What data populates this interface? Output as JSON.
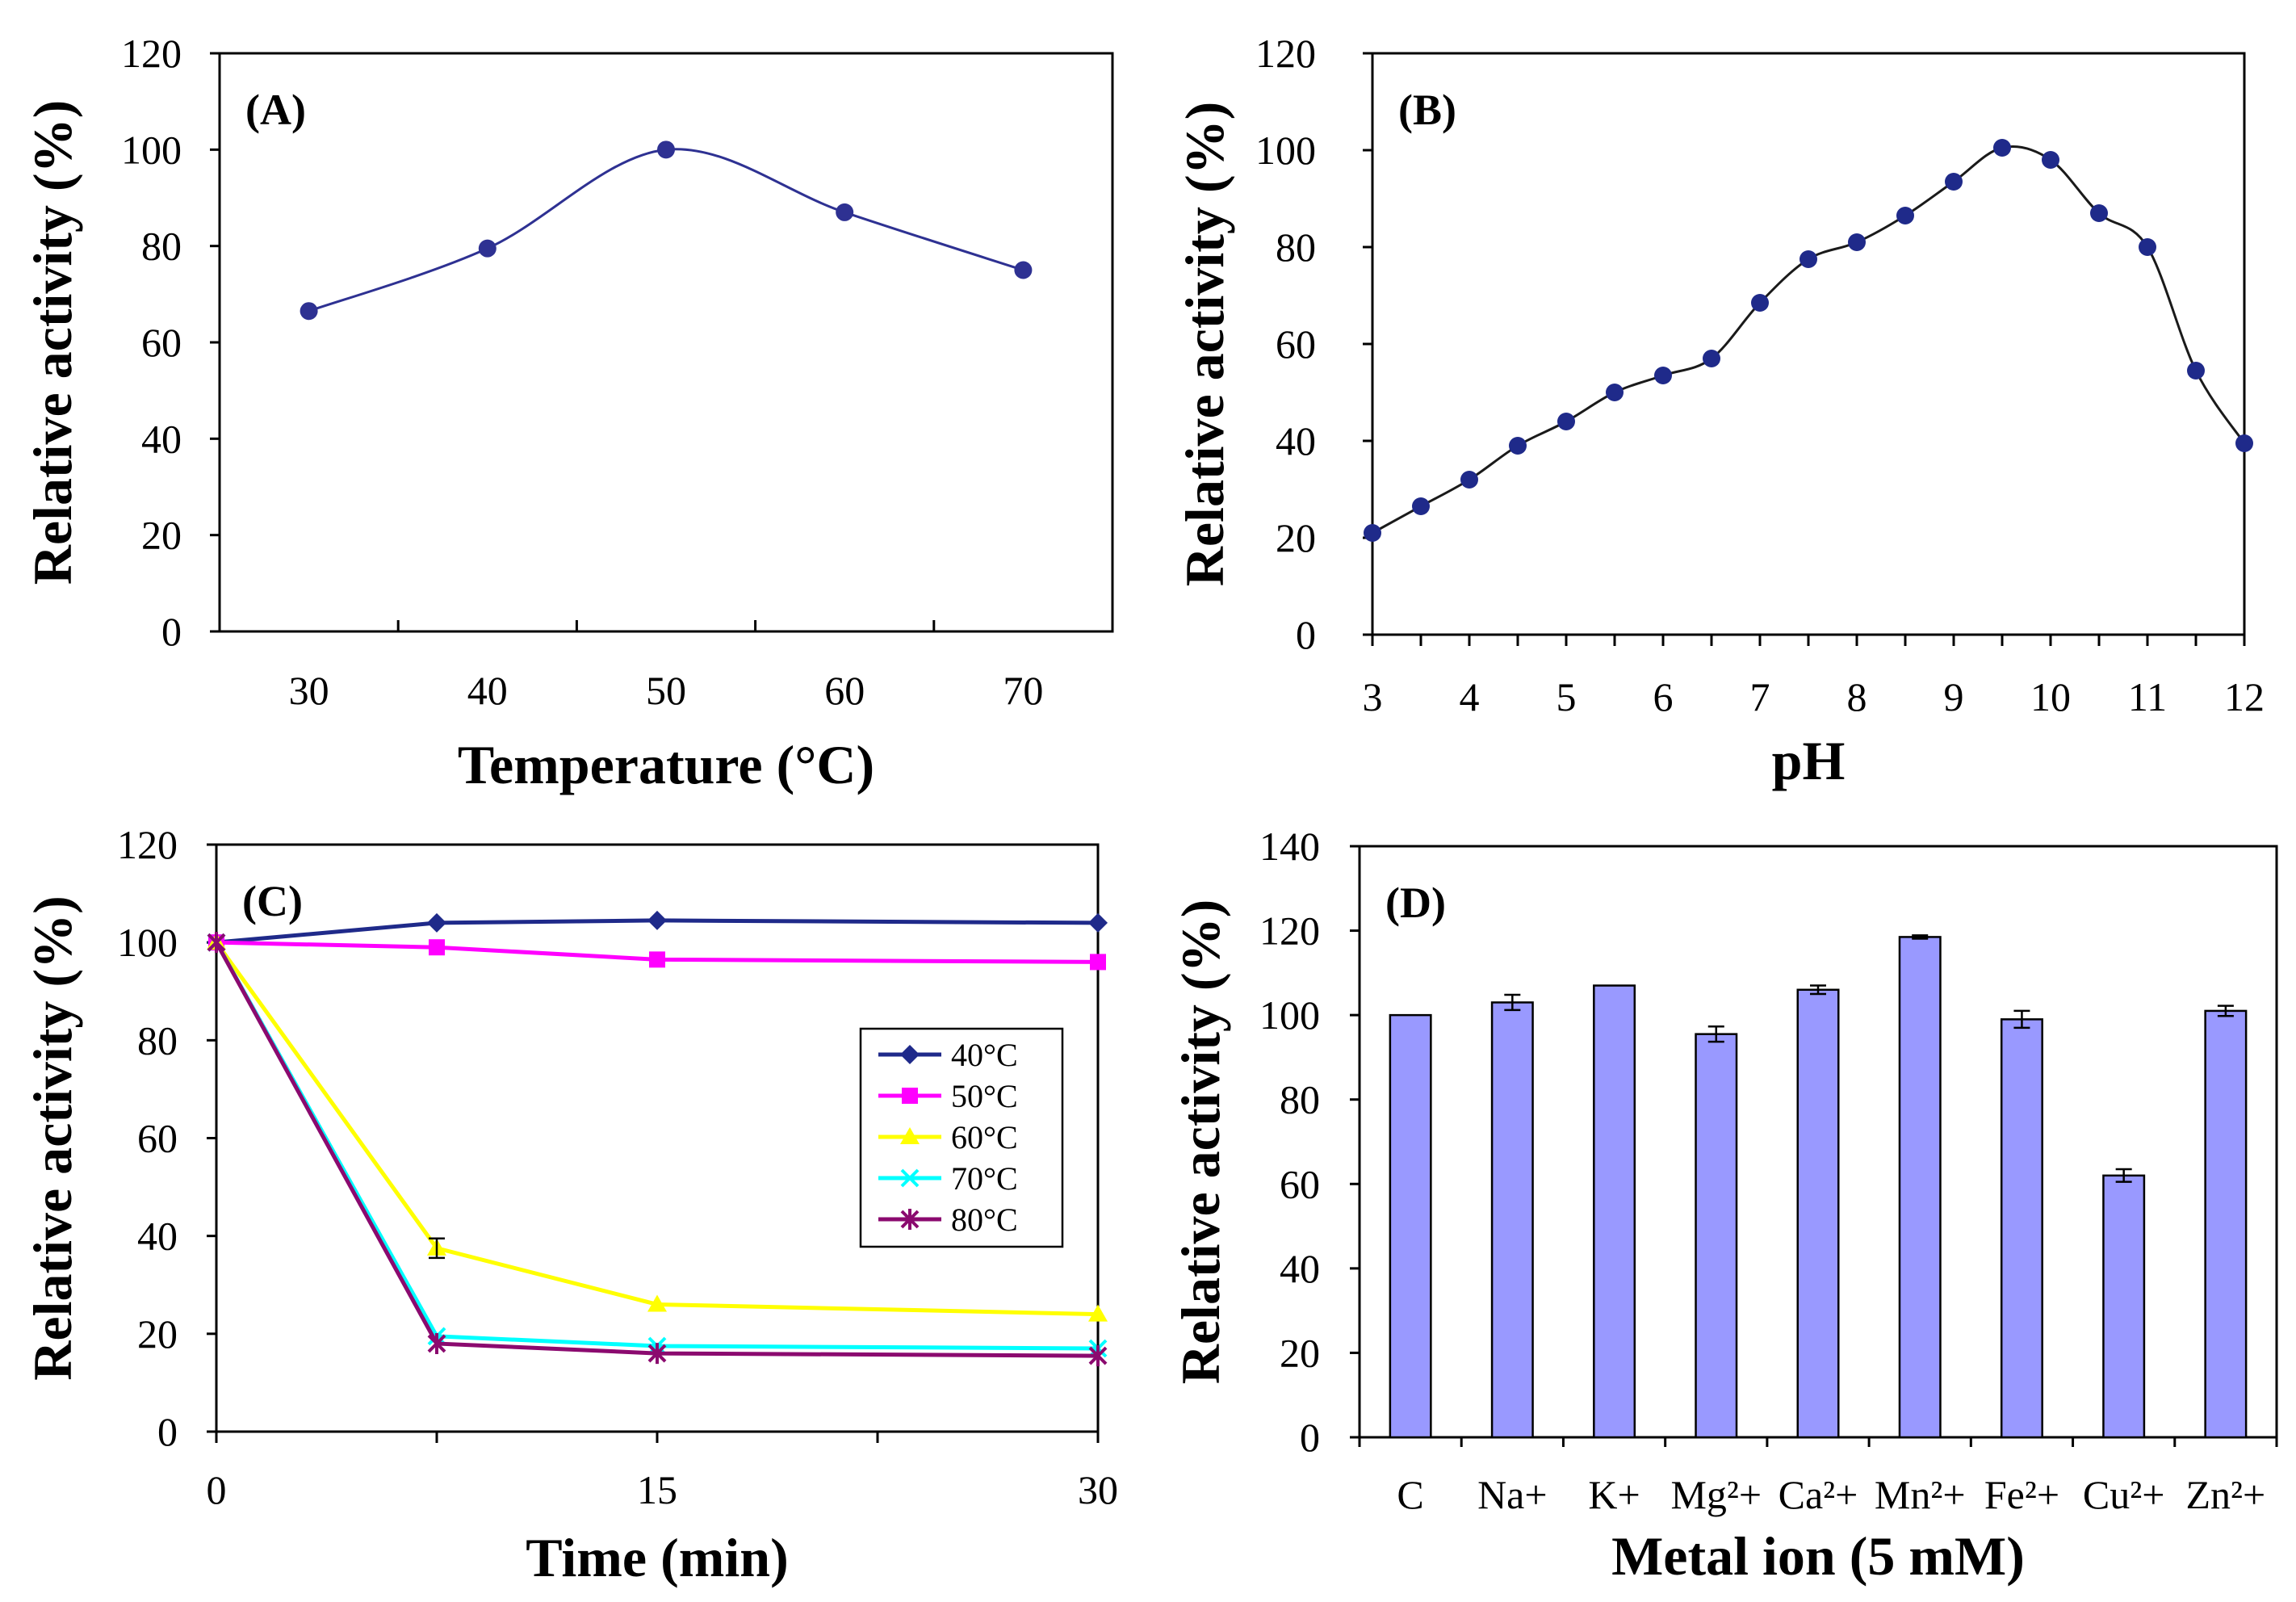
{
  "chart_data": [
    {
      "id": "A",
      "panel_label": "(A)",
      "type": "line",
      "smooth": true,
      "xlabel": "Temperature (°C)",
      "ylabel": "Relative activity (%)",
      "xlim": [
        25,
        75
      ],
      "ylim": [
        0,
        120
      ],
      "xticks": [
        30,
        40,
        50,
        60,
        70
      ],
      "yticks": [
        0,
        20,
        40,
        60,
        80,
        100,
        120
      ],
      "series": [
        {
          "name": "Relative activity",
          "color": "#2e3192",
          "marker": "circle",
          "x": [
            30,
            40,
            50,
            60,
            70
          ],
          "values": [
            66.5,
            79.5,
            100,
            87,
            75
          ]
        }
      ]
    },
    {
      "id": "B",
      "panel_label": "(B)",
      "type": "line",
      "smooth": true,
      "xlabel": "pH",
      "ylabel": "Relative activity (%)",
      "xlim": [
        3,
        12
      ],
      "ylim": [
        0,
        120
      ],
      "xticks": [
        3,
        4,
        5,
        6,
        7,
        8,
        9,
        10,
        11,
        12
      ],
      "yticks": [
        0,
        20,
        40,
        60,
        80,
        100,
        120
      ],
      "series": [
        {
          "name": "Relative activity",
          "color": "#1a1a1a",
          "marker_color": "#1f2a8a",
          "marker": "circle",
          "x": [
            3,
            3.5,
            4,
            4.5,
            5,
            5.5,
            6,
            6.5,
            7,
            7.5,
            8,
            8.5,
            9,
            9.5,
            10,
            10.5,
            11,
            11.5,
            12
          ],
          "values": [
            21,
            26.5,
            32,
            39,
            44,
            50,
            53.5,
            57,
            68.5,
            77.5,
            81,
            86.5,
            93.5,
            100.5,
            98,
            87,
            80,
            54.5,
            39.5
          ]
        }
      ]
    },
    {
      "id": "C",
      "panel_label": "(C)",
      "type": "line",
      "xlabel": "Time (min)",
      "ylabel": "Relative activity (%)",
      "xlim": [
        0,
        30
      ],
      "ylim": [
        0,
        120
      ],
      "xticks": [
        0,
        15,
        30
      ],
      "yticks": [
        0,
        20,
        40,
        60,
        80,
        100,
        120
      ],
      "x": [
        0,
        7.5,
        15,
        30
      ],
      "series": [
        {
          "name": "40°C",
          "color": "#1f2a8a",
          "marker": "diamond",
          "values": [
            100,
            104,
            104.5,
            104
          ]
        },
        {
          "name": "50°C",
          "color": "#ff00ff",
          "marker": "square",
          "values": [
            100,
            99,
            96.5,
            96
          ]
        },
        {
          "name": "60°C",
          "color": "#ffff00",
          "marker": "triangle",
          "values": [
            100,
            37.5,
            26,
            24
          ]
        },
        {
          "name": "70°C",
          "color": "#00ffff",
          "marker": "x",
          "values": [
            100,
            19.5,
            17.5,
            17
          ]
        },
        {
          "name": "80°C",
          "color": "#8b0a6f",
          "marker": "star",
          "values": [
            100,
            18,
            16,
            15.5
          ]
        }
      ]
    },
    {
      "id": "D",
      "panel_label": "(D)",
      "type": "bar",
      "xlabel": "Metal ion (5 mM)",
      "ylabel": "Relative activity (%)",
      "ylim": [
        0,
        140
      ],
      "yticks": [
        0,
        20,
        40,
        60,
        80,
        100,
        120,
        140
      ],
      "bar_color": "#9999ff",
      "categories": [
        "C",
        "Na+",
        "K+",
        "Mg²+",
        "Ca²+",
        "Mn²+",
        "Fe²+",
        "Cu²+",
        "Zn²+"
      ],
      "values": [
        100,
        103,
        107,
        95.5,
        106,
        118.5,
        99,
        62,
        101
      ],
      "errors": [
        0,
        1.8,
        0,
        1.8,
        1,
        0.4,
        2,
        1.5,
        1.2
      ]
    }
  ]
}
